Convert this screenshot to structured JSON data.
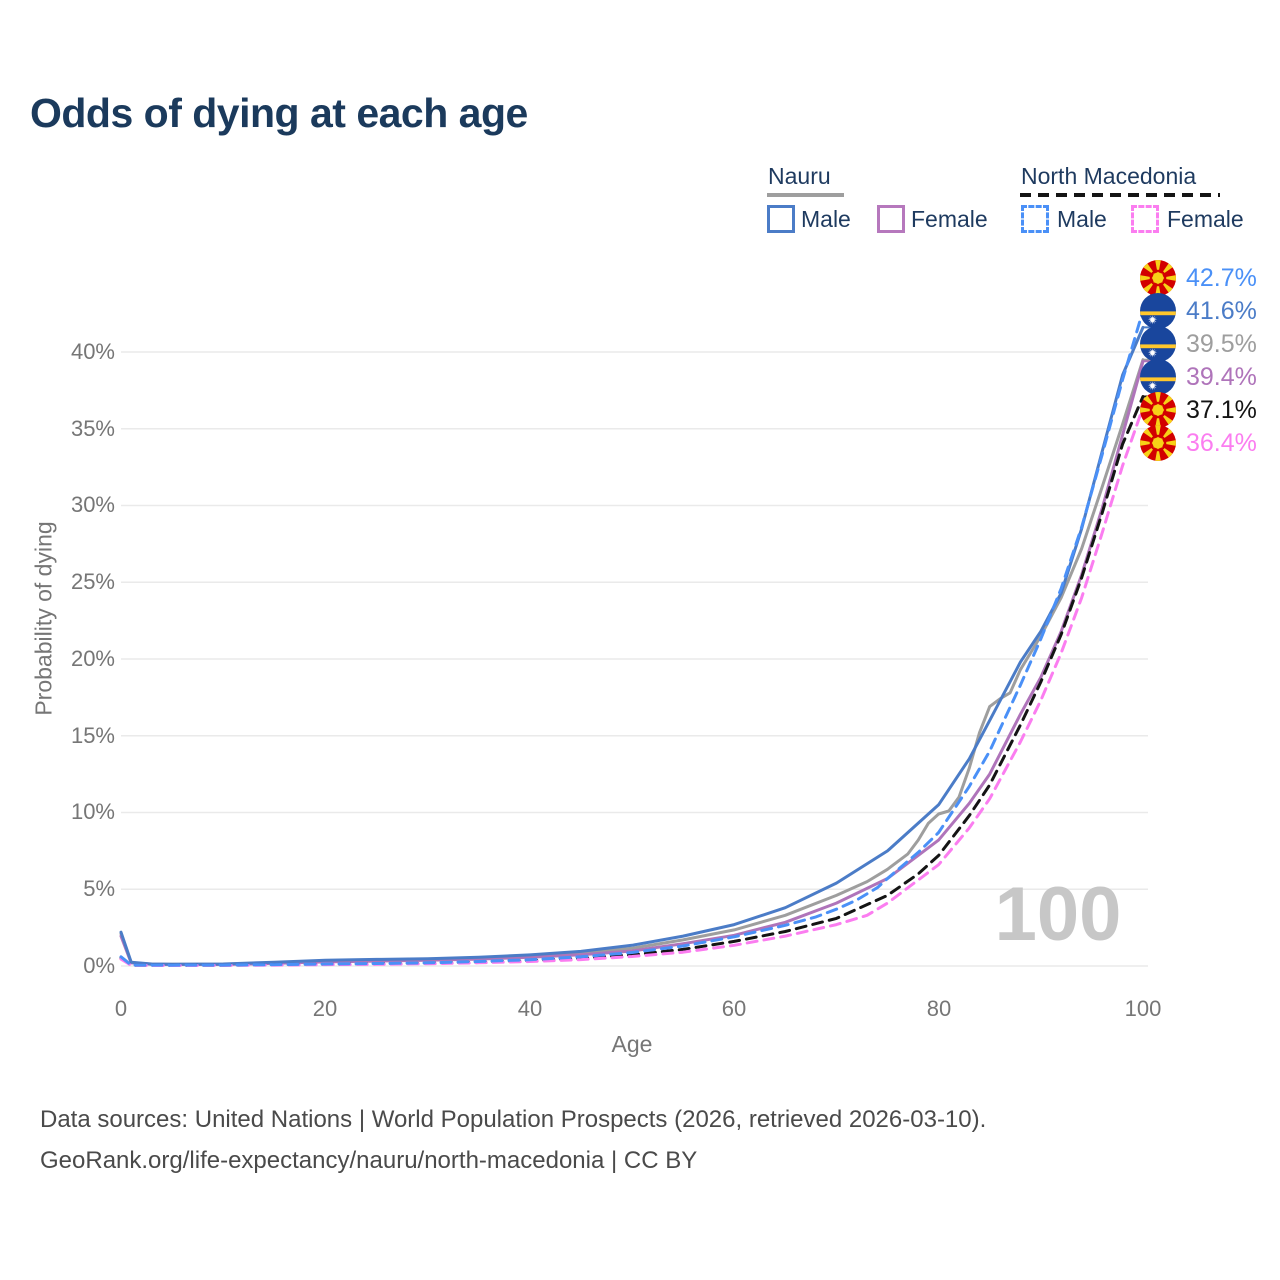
{
  "title": "Odds of dying at each age",
  "watermark": "100",
  "legend": {
    "groups": [
      {
        "name": "Nauru",
        "line_style": "solid",
        "line_color": "#9e9e9e",
        "items": [
          {
            "label": "Male",
            "color": "#4b7cc7"
          },
          {
            "label": "Female",
            "color": "#b678bd"
          }
        ]
      },
      {
        "name": "North Macedonia",
        "line_style": "dashed",
        "line_color": "#141414",
        "items": [
          {
            "label": "Male",
            "color": "#4a90f7"
          },
          {
            "label": "Female",
            "color": "#fb7df0"
          }
        ]
      }
    ]
  },
  "chart_data": {
    "type": "line",
    "title": "Odds of dying at each age",
    "xlabel": "Age",
    "ylabel": "Probability of dying",
    "xlim": [
      0,
      100
    ],
    "ylim_pct": [
      0,
      44
    ],
    "grid": "horizontal",
    "x_ticks": [
      "0",
      "20",
      "40",
      "60",
      "80",
      "100"
    ],
    "y_ticks": [
      "0%",
      "5%",
      "10%",
      "15%",
      "20%",
      "25%",
      "30%",
      "35%",
      "40%"
    ],
    "series": [
      {
        "id": "nauru-all",
        "name": "Nauru — Both sexes",
        "country": "Nauru",
        "sex": "all",
        "color": "#9e9e9e",
        "dashed": false,
        "end_label": "39.5%",
        "points": [
          [
            0,
            2.1
          ],
          [
            1,
            0.22
          ],
          [
            3,
            0.12
          ],
          [
            5,
            0.11
          ],
          [
            10,
            0.12
          ],
          [
            15,
            0.22
          ],
          [
            20,
            0.33
          ],
          [
            25,
            0.39
          ],
          [
            30,
            0.43
          ],
          [
            35,
            0.52
          ],
          [
            40,
            0.65
          ],
          [
            45,
            0.85
          ],
          [
            50,
            1.15
          ],
          [
            55,
            1.7
          ],
          [
            60,
            2.35
          ],
          [
            65,
            3.3
          ],
          [
            70,
            4.6
          ],
          [
            73,
            5.5
          ],
          [
            75,
            6.3
          ],
          [
            77,
            7.3
          ],
          [
            78,
            8.2
          ],
          [
            79,
            9.3
          ],
          [
            80,
            9.9
          ],
          [
            81,
            10.1
          ],
          [
            82,
            11.0
          ],
          [
            83,
            12.9
          ],
          [
            84,
            15.2
          ],
          [
            85,
            16.9
          ],
          [
            86,
            17.4
          ],
          [
            87,
            17.8
          ],
          [
            88,
            19.3
          ],
          [
            90,
            21.5
          ],
          [
            92,
            24.0
          ],
          [
            94,
            27.2
          ],
          [
            96,
            31.2
          ],
          [
            98,
            35.3
          ],
          [
            100,
            39.5
          ]
        ]
      },
      {
        "id": "nauru-female",
        "name": "Nauru — Female",
        "country": "Nauru",
        "sex": "female",
        "color": "#af74ba",
        "dashed": false,
        "end_label": "39.4%",
        "points": [
          [
            0,
            1.95
          ],
          [
            1,
            0.2
          ],
          [
            3,
            0.11
          ],
          [
            5,
            0.1
          ],
          [
            10,
            0.1
          ],
          [
            15,
            0.17
          ],
          [
            20,
            0.27
          ],
          [
            25,
            0.32
          ],
          [
            30,
            0.37
          ],
          [
            35,
            0.45
          ],
          [
            40,
            0.57
          ],
          [
            45,
            0.73
          ],
          [
            50,
            0.98
          ],
          [
            55,
            1.45
          ],
          [
            60,
            2.0
          ],
          [
            65,
            2.85
          ],
          [
            70,
            4.1
          ],
          [
            75,
            5.7
          ],
          [
            80,
            8.2
          ],
          [
            83,
            10.6
          ],
          [
            85,
            12.5
          ],
          [
            88,
            16.4
          ],
          [
            90,
            18.8
          ],
          [
            92,
            21.8
          ],
          [
            94,
            25.5
          ],
          [
            96,
            29.8
          ],
          [
            98,
            34.6
          ],
          [
            100,
            39.4
          ]
        ]
      },
      {
        "id": "nauru-male",
        "name": "Nauru — Male",
        "country": "Nauru",
        "sex": "male",
        "color": "#4b7cc7",
        "dashed": false,
        "end_label": "41.6%",
        "points": [
          [
            0,
            2.2
          ],
          [
            1,
            0.25
          ],
          [
            3,
            0.13
          ],
          [
            5,
            0.12
          ],
          [
            10,
            0.13
          ],
          [
            15,
            0.25
          ],
          [
            20,
            0.37
          ],
          [
            25,
            0.43
          ],
          [
            30,
            0.47
          ],
          [
            35,
            0.57
          ],
          [
            40,
            0.72
          ],
          [
            45,
            0.95
          ],
          [
            50,
            1.35
          ],
          [
            55,
            1.95
          ],
          [
            60,
            2.7
          ],
          [
            65,
            3.8
          ],
          [
            70,
            5.4
          ],
          [
            75,
            7.5
          ],
          [
            80,
            10.5
          ],
          [
            83,
            13.5
          ],
          [
            85,
            16.0
          ],
          [
            88,
            19.8
          ],
          [
            90,
            21.8
          ],
          [
            92,
            24.3
          ],
          [
            94,
            28.5
          ],
          [
            96,
            33.5
          ],
          [
            98,
            38.5
          ],
          [
            100,
            41.6
          ]
        ]
      },
      {
        "id": "nm-all",
        "name": "North Macedonia — Both sexes",
        "country": "North Macedonia",
        "sex": "all",
        "color": "#141414",
        "dashed": true,
        "end_label": "37.1%",
        "points": [
          [
            0,
            0.52
          ],
          [
            1,
            0.05
          ],
          [
            5,
            0.04
          ],
          [
            10,
            0.05
          ],
          [
            15,
            0.08
          ],
          [
            20,
            0.11
          ],
          [
            25,
            0.14
          ],
          [
            30,
            0.18
          ],
          [
            35,
            0.25
          ],
          [
            40,
            0.35
          ],
          [
            45,
            0.5
          ],
          [
            50,
            0.73
          ],
          [
            55,
            1.08
          ],
          [
            60,
            1.6
          ],
          [
            65,
            2.25
          ],
          [
            70,
            3.1
          ],
          [
            75,
            4.6
          ],
          [
            78,
            6.0
          ],
          [
            80,
            7.2
          ],
          [
            83,
            9.8
          ],
          [
            85,
            11.8
          ],
          [
            88,
            15.7
          ],
          [
            90,
            18.5
          ],
          [
            92,
            21.6
          ],
          [
            94,
            25.3
          ],
          [
            96,
            29.5
          ],
          [
            98,
            34.0
          ],
          [
            100,
            37.1
          ]
        ]
      },
      {
        "id": "nm-female",
        "name": "North Macedonia — Female",
        "country": "North Macedonia",
        "sex": "female",
        "color": "#fb7df0",
        "dashed": true,
        "end_label": "36.4%",
        "points": [
          [
            0,
            0.45
          ],
          [
            1,
            0.04
          ],
          [
            5,
            0.03
          ],
          [
            10,
            0.04
          ],
          [
            15,
            0.06
          ],
          [
            20,
            0.09
          ],
          [
            25,
            0.11
          ],
          [
            30,
            0.15
          ],
          [
            35,
            0.21
          ],
          [
            40,
            0.29
          ],
          [
            45,
            0.42
          ],
          [
            50,
            0.62
          ],
          [
            55,
            0.9
          ],
          [
            60,
            1.35
          ],
          [
            65,
            1.95
          ],
          [
            70,
            2.7
          ],
          [
            73,
            3.3
          ],
          [
            75,
            4.1
          ],
          [
            78,
            5.6
          ],
          [
            80,
            6.6
          ],
          [
            83,
            9.0
          ],
          [
            85,
            10.9
          ],
          [
            88,
            14.6
          ],
          [
            90,
            17.3
          ],
          [
            92,
            20.4
          ],
          [
            94,
            24.0
          ],
          [
            96,
            28.2
          ],
          [
            98,
            32.6
          ],
          [
            100,
            36.4
          ]
        ]
      },
      {
        "id": "nm-male",
        "name": "North Macedonia — Male",
        "country": "North Macedonia",
        "sex": "male",
        "color": "#4a90f7",
        "dashed": true,
        "end_label": "42.7%",
        "points": [
          [
            0,
            0.6
          ],
          [
            1,
            0.06
          ],
          [
            5,
            0.05
          ],
          [
            10,
            0.06
          ],
          [
            15,
            0.09
          ],
          [
            20,
            0.13
          ],
          [
            25,
            0.16
          ],
          [
            30,
            0.21
          ],
          [
            35,
            0.29
          ],
          [
            40,
            0.41
          ],
          [
            45,
            0.6
          ],
          [
            50,
            0.88
          ],
          [
            55,
            1.3
          ],
          [
            60,
            1.9
          ],
          [
            65,
            2.65
          ],
          [
            68,
            3.2
          ],
          [
            70,
            3.7
          ],
          [
            72,
            4.3
          ],
          [
            74,
            5.1
          ],
          [
            75,
            5.7
          ],
          [
            78,
            7.4
          ],
          [
            80,
            8.7
          ],
          [
            83,
            11.7
          ],
          [
            85,
            14.0
          ],
          [
            88,
            18.3
          ],
          [
            90,
            21.3
          ],
          [
            92,
            24.6
          ],
          [
            94,
            28.6
          ],
          [
            96,
            33.3
          ],
          [
            98,
            38.2
          ],
          [
            100,
            42.7
          ]
        ]
      }
    ]
  },
  "end_labels": [
    {
      "value": "42.7%",
      "series": "North Macedonia — Male",
      "color": "#4a90f7",
      "flag": "north-macedonia",
      "end_pct": 42.7
    },
    {
      "value": "41.6%",
      "series": "Nauru — Male",
      "color": "#4b7cc7",
      "flag": "nauru",
      "end_pct": 41.6
    },
    {
      "value": "39.5%",
      "series": "Nauru — Both sexes",
      "color": "#9e9e9e",
      "flag": "nauru",
      "end_pct": 39.5
    },
    {
      "value": "39.4%",
      "series": "Nauru — Female",
      "color": "#af74ba",
      "flag": "nauru",
      "end_pct": 39.4
    },
    {
      "value": "37.1%",
      "series": "North Macedonia — Both sexes",
      "color": "#141414",
      "flag": "north-macedonia",
      "end_pct": 37.1
    },
    {
      "value": "36.4%",
      "series": "North Macedonia — Female",
      "color": "#fb7df0",
      "flag": "north-macedonia",
      "end_pct": 36.4
    }
  ],
  "footer": {
    "line1": "Data sources: United Nations | World Population Prospects (2026, retrieved 2026-03-10).",
    "line2": "GeoRank.org/life-expectancy/nauru/north-macedonia | CC BY"
  }
}
